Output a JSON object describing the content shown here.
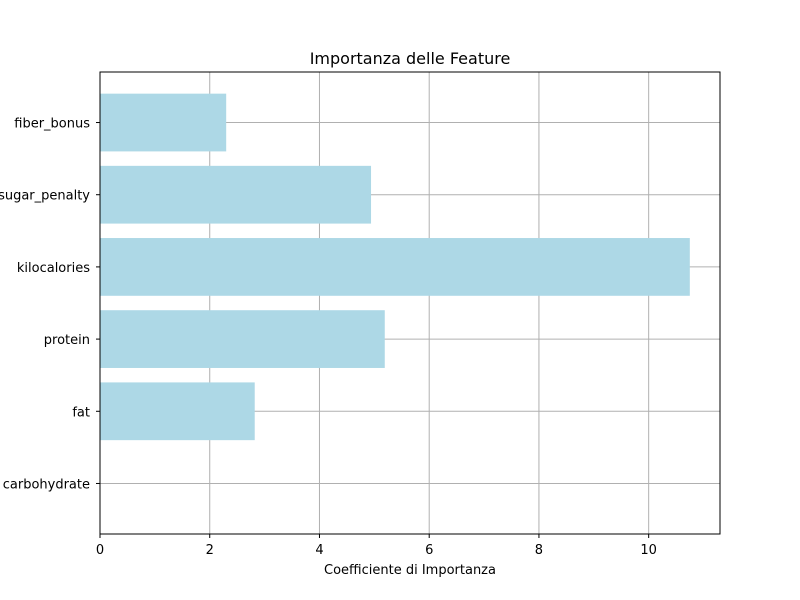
{
  "chart_data": {
    "type": "bar",
    "orientation": "horizontal",
    "title": "Importanza delle Feature",
    "xlabel": "Coefficiente di Importanza",
    "ylabel": "",
    "categories": [
      "carbohydrate",
      "fat",
      "protein",
      "kilocalories",
      "sugar_penalty",
      "fiber_bonus"
    ],
    "values": [
      0,
      2.82,
      5.19,
      10.75,
      4.94,
      2.3
    ],
    "xlim": [
      0,
      11.3
    ],
    "xticks": [
      0,
      2,
      4,
      6,
      8,
      10
    ],
    "grid": true,
    "bar_color": "#add8e6"
  }
}
